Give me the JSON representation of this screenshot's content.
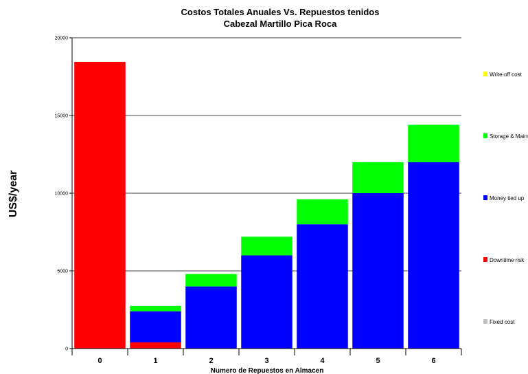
{
  "chart_data": {
    "type": "bar",
    "stacked": true,
    "title": "Costos Totales Anuales Vs. Repuestos tenidos",
    "subtitle": "Cabezal Martillo Pica Roca",
    "xlabel": "Numero de Repuestos en Almacen",
    "ylabel": "US$/year",
    "ylim": [
      0,
      20000
    ],
    "yticks": [
      0,
      5000,
      10000,
      15000,
      20000
    ],
    "grid": true,
    "legend_position": "right",
    "categories": [
      "0",
      "1",
      "2",
      "3",
      "4",
      "5",
      "6"
    ],
    "series": [
      {
        "name": "Fixed cost",
        "color": "#c0c0c0",
        "values": [
          0,
          0,
          0,
          0,
          0,
          0,
          0
        ]
      },
      {
        "name": "Downtime risk",
        "color": "#ff0000",
        "values": [
          18450,
          400,
          0,
          0,
          0,
          0,
          0
        ]
      },
      {
        "name": "Money tied up",
        "color": "#0000ff",
        "values": [
          0,
          2000,
          4000,
          6000,
          8000,
          10000,
          12000
        ]
      },
      {
        "name": "Storage & Maint",
        "color": "#00ff00",
        "values": [
          0,
          350,
          800,
          1200,
          1600,
          2000,
          2400
        ]
      },
      {
        "name": "Write-off cost",
        "color": "#ffff00",
        "values": [
          0,
          0,
          0,
          0,
          0,
          0,
          0
        ]
      }
    ],
    "legend_order": [
      "Write-off cost",
      "Storage & Maint",
      "Money tied up",
      "Downtime risk",
      "Fixed cost"
    ]
  }
}
